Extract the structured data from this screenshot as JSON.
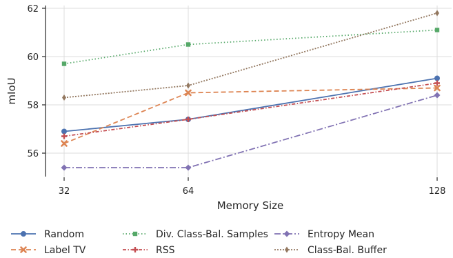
{
  "chart_data": {
    "type": "line",
    "xlabel": "Memory Size",
    "ylabel": "mIoU",
    "x": [
      32,
      64,
      128
    ],
    "x_tick_labels": [
      "32",
      "64",
      "128"
    ],
    "x_scale": "log2",
    "ylim": [
      55.0,
      62.2
    ],
    "y_ticks": [
      56,
      58,
      60,
      62
    ],
    "y_tick_labels": [
      "56",
      "58",
      "60",
      "62"
    ],
    "grid": true,
    "legend_position": "bottom",
    "series": [
      {
        "name": "Random",
        "values": [
          56.9,
          57.4,
          59.1
        ],
        "color": "#4c72b0",
        "dash": "solid",
        "marker": "circle"
      },
      {
        "name": "Label TV",
        "values": [
          56.4,
          58.5,
          58.7
        ],
        "color": "#dd8452",
        "dash": "dashed",
        "marker": "x"
      },
      {
        "name": "Div. Class-Bal. Samples",
        "values": [
          59.7,
          60.5,
          61.1
        ],
        "color": "#55a868",
        "dash": "dotted",
        "marker": "square"
      },
      {
        "name": "RSS",
        "values": [
          56.7,
          57.4,
          58.9
        ],
        "color": "#c44e52",
        "dash": "dashdot",
        "marker": "plus"
      },
      {
        "name": "Entropy Mean",
        "values": [
          55.4,
          55.4,
          58.4
        ],
        "color": "#8172b3",
        "dash": "longdashdot",
        "marker": "diamond"
      },
      {
        "name": "Class-Bal. Buffer",
        "values": [
          58.3,
          58.8,
          61.8
        ],
        "color": "#937860",
        "dash": "densedot",
        "marker": "thindiamond"
      }
    ]
  }
}
